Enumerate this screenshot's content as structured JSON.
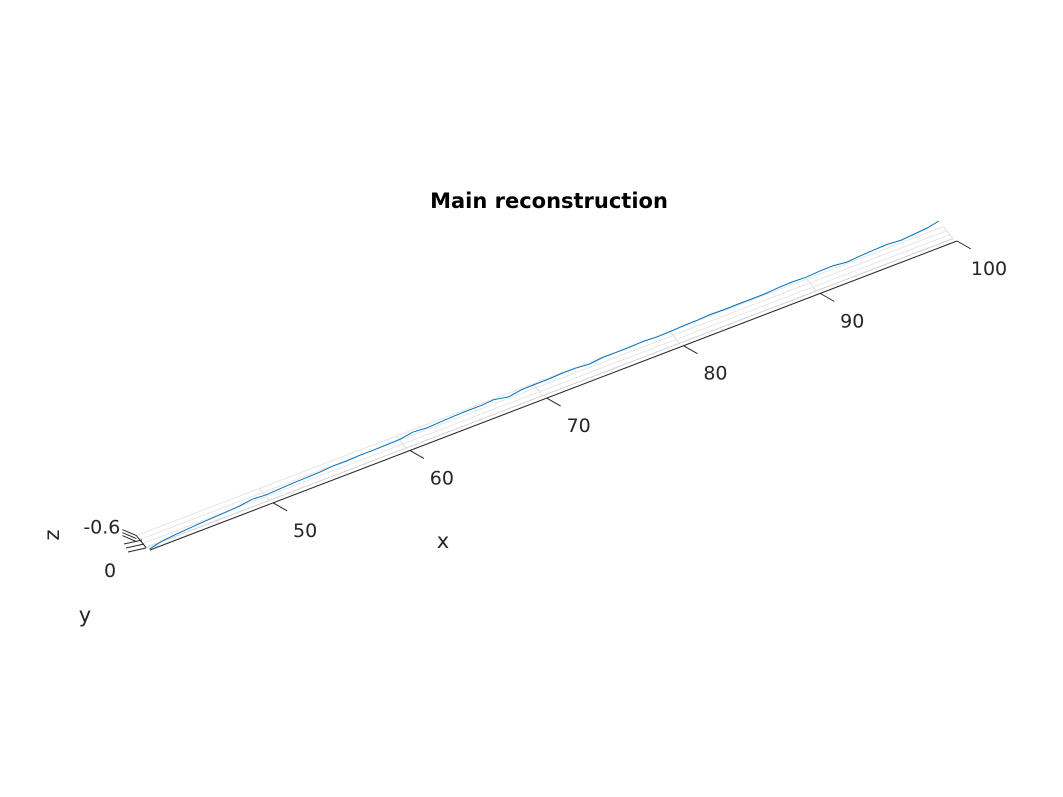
{
  "chart_data": {
    "type": "line",
    "title": "Main reconstruction",
    "xlabel": "x",
    "ylabel": "y",
    "zlabel": "z",
    "view": "3d",
    "grid": true,
    "xlim": [
      41,
      100
    ],
    "zlim": [
      -0.6,
      0
    ],
    "x_ticks": [
      50,
      60,
      70,
      80,
      90,
      100
    ],
    "y_ticks": [
      0
    ],
    "z_ticks": [
      -0.6
    ],
    "x_tick_labels": [
      "50",
      "60",
      "70",
      "80",
      "90",
      "100"
    ],
    "y_tick_labels": [
      "0"
    ],
    "z_tick_labels": [
      "-0.6"
    ],
    "line_color": "#0072BD",
    "series": [
      {
        "x": [
          41,
          42,
          43,
          45,
          47,
          48,
          49,
          50,
          52,
          54,
          55,
          56,
          57,
          58,
          60,
          61,
          62,
          63,
          64,
          65,
          66,
          67,
          68,
          69,
          70,
          71,
          72,
          73,
          74,
          75,
          76,
          77,
          78,
          79,
          80,
          81,
          82,
          83,
          84,
          85,
          86,
          87,
          88,
          89,
          90,
          91,
          92,
          93,
          94,
          95,
          96,
          97,
          98,
          99,
          100
        ],
        "y": [
          0,
          0.01,
          0.01,
          0.02,
          0.02,
          0.02,
          0.03,
          0.02,
          0.03,
          0.02,
          0.03,
          0.03,
          0.02,
          0.03,
          0.03,
          0.04,
          0.03,
          0.03,
          0.04,
          0.04,
          0.03,
          0.05,
          0.03,
          0.04,
          0.04,
          0.04,
          0.05,
          0.04,
          0.05,
          0.05,
          0.04,
          0.05,
          0.05,
          0.05,
          0.04,
          0.05,
          0.05,
          0.06,
          0.05,
          0.05,
          0.06,
          0.05,
          0.06,
          0.06,
          0.05,
          0.06,
          0.06,
          0.07,
          0.06,
          0.06,
          0.07,
          0.06,
          0.06,
          0.07,
          0.1
        ],
        "z": [
          -0.04,
          -0.14,
          -0.2,
          -0.26,
          -0.31,
          -0.34,
          -0.4,
          -0.38,
          -0.42,
          -0.46,
          -0.49,
          -0.48,
          -0.52,
          -0.5,
          -0.53,
          -0.6,
          -0.57,
          -0.6,
          -0.61,
          -0.62,
          -0.63,
          -0.64,
          -0.56,
          -0.63,
          -0.64,
          -0.64,
          -0.65,
          -0.66,
          -0.6,
          -0.66,
          -0.67,
          -0.66,
          -0.68,
          -0.65,
          -0.68,
          -0.69,
          -0.7,
          -0.71,
          -0.71,
          -0.72,
          -0.7,
          -0.72,
          -0.74,
          -0.76,
          -0.75,
          -0.77,
          -0.78,
          -0.7,
          -0.76,
          -0.78,
          -0.79,
          -0.76,
          -0.8,
          -0.83,
          -0.88
        ]
      }
    ]
  }
}
